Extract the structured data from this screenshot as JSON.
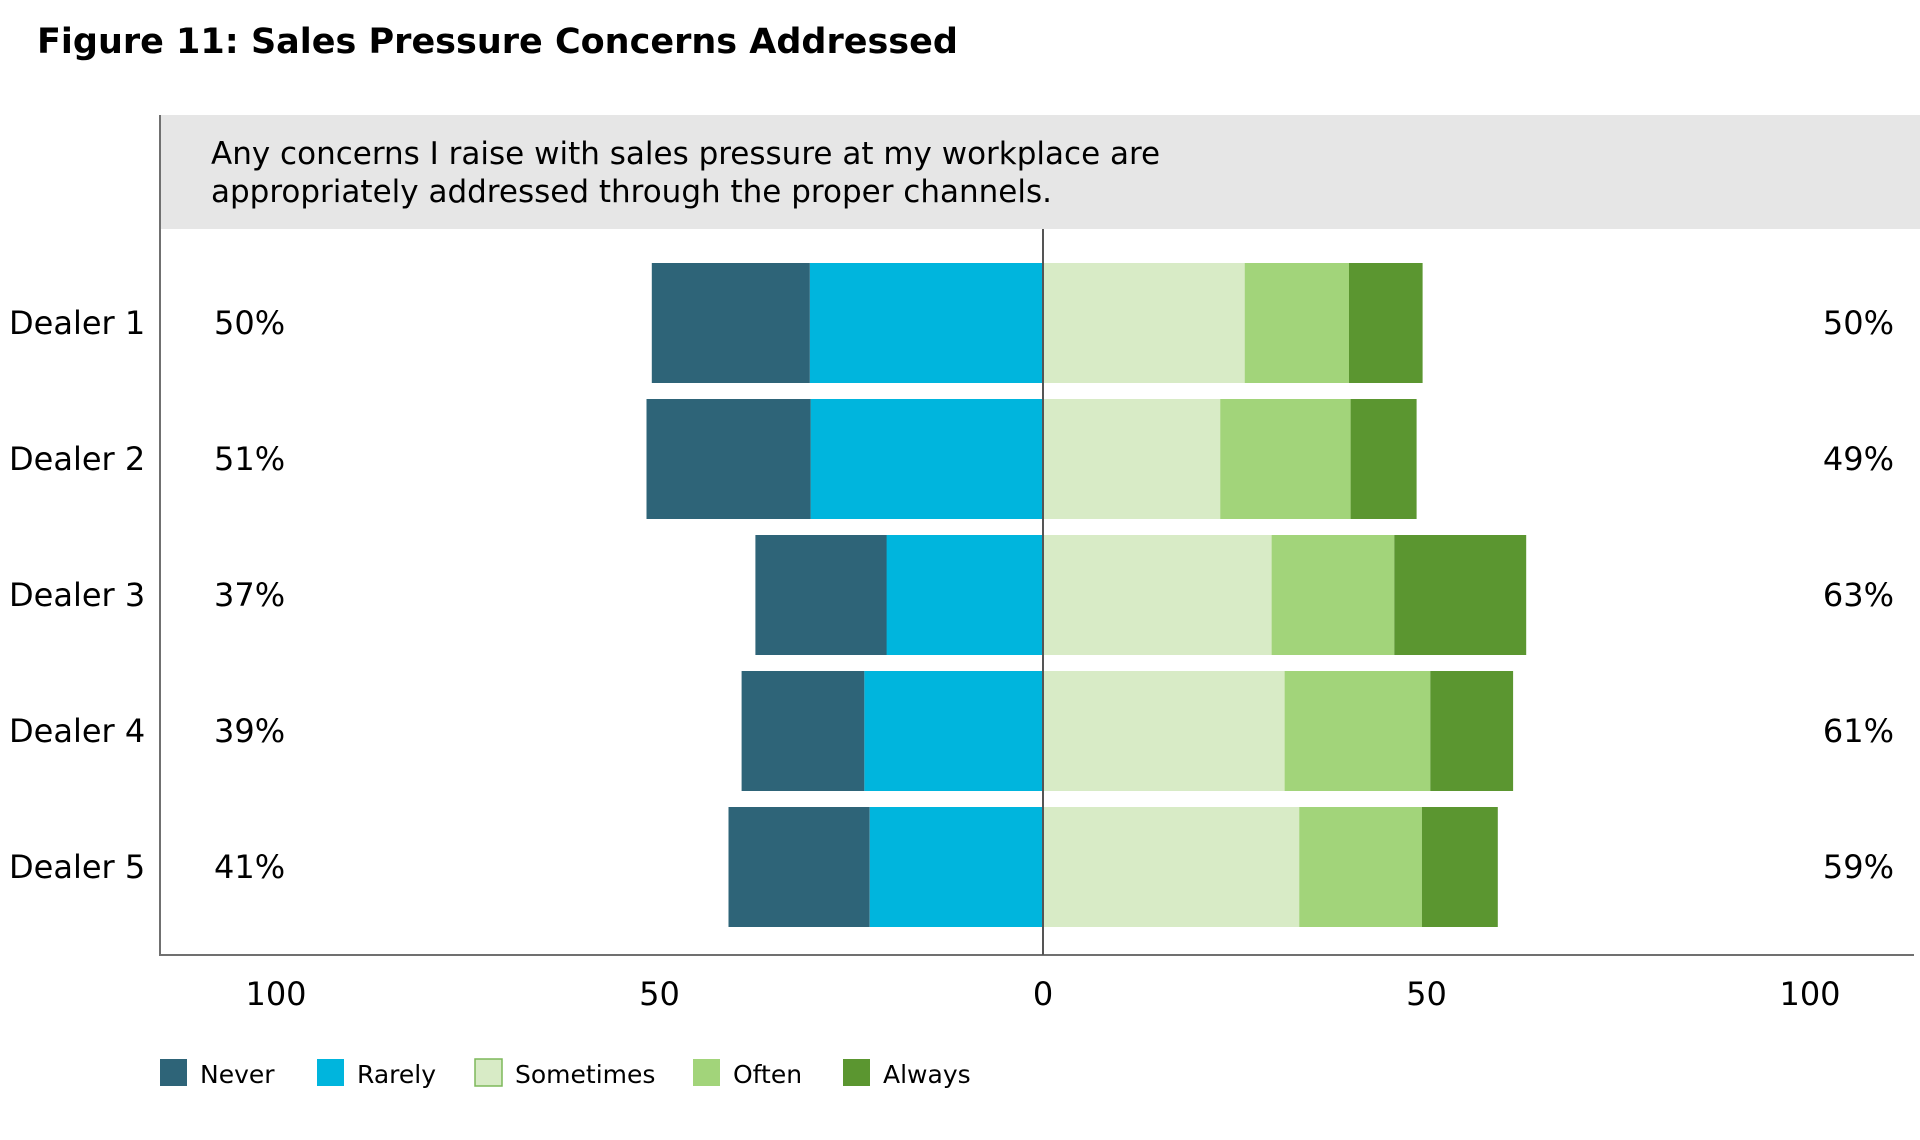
{
  "figure_title": "Figure 11: Sales Pressure Concerns Addressed",
  "chart_data": {
    "type": "bar",
    "orientation": "horizontal",
    "stacking": "diverging",
    "title": "Figure 11: Sales Pressure Concerns Addressed",
    "subtitle": "Any concerns I raise with sales pressure at my workplace are appropriately addressed through the proper channels.",
    "subtitle_lines": [
      "Any concerns I raise with sales pressure at my workplace are",
      "appropriately addressed through the proper channels."
    ],
    "categories": [
      "Dealer 1",
      "Dealer 2",
      "Dealer 3",
      "Dealer 4",
      "Dealer 5"
    ],
    "series": [
      {
        "name": "Never",
        "side": "negative",
        "color": "#2E6478",
        "values": [
          20.6,
          21.4,
          17.1,
          16.0,
          18.4
        ]
      },
      {
        "name": "Rarely",
        "side": "negative",
        "color": "#00B5DD",
        "values": [
          30.4,
          30.3,
          20.4,
          23.3,
          22.6
        ]
      },
      {
        "name": "Sometimes",
        "side": "positive",
        "color": "#D8EBC6",
        "values": [
          26.3,
          23.1,
          29.8,
          31.5,
          33.4
        ]
      },
      {
        "name": "Often",
        "side": "positive",
        "color": "#A2D47A",
        "values": [
          13.6,
          17.0,
          16.0,
          19.0,
          16.0
        ]
      },
      {
        "name": "Always",
        "side": "positive",
        "color": "#5B9630",
        "values": [
          9.6,
          8.6,
          17.2,
          10.8,
          9.9
        ]
      }
    ],
    "left_totals": [
      "50%",
      "51%",
      "37%",
      "39%",
      "41%"
    ],
    "right_totals": [
      "50%",
      "49%",
      "63%",
      "61%",
      "59%"
    ],
    "x_ticks": [
      "100",
      "50",
      "0",
      "50",
      "100"
    ],
    "xlim": [
      -100,
      100
    ],
    "grid": false,
    "legend_position": "bottom-left",
    "colors": {
      "subtitle_band": "#E6E6E6",
      "axis": "#707070",
      "zero_line": "#555555"
    }
  }
}
